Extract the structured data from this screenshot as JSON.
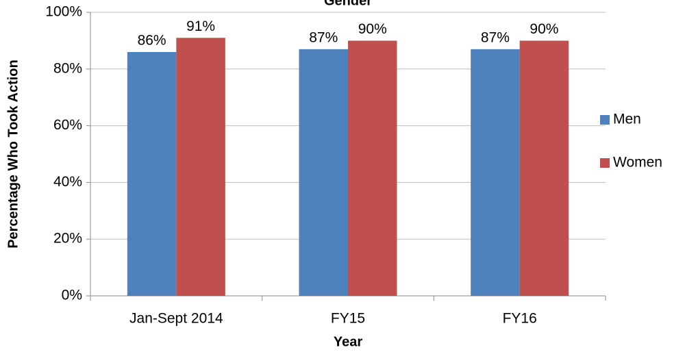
{
  "chart_data": {
    "type": "bar",
    "title": "Gender",
    "x_label": "Year",
    "y_label": "Percentage Who Took Action",
    "categories": [
      "Jan-Sept 2014",
      "FY15",
      "FY16"
    ],
    "series": [
      {
        "name": "Men",
        "color": "#4f81bd",
        "values": [
          86,
          87,
          87
        ],
        "value_labels": [
          "86%",
          "87%",
          "87%"
        ]
      },
      {
        "name": "Women",
        "color": "#c0504d",
        "values": [
          91,
          90,
          90
        ],
        "value_labels": [
          "91%",
          "90%",
          "90%"
        ]
      }
    ],
    "ylim": [
      0,
      100
    ],
    "yticks": [
      {
        "value": 0,
        "label": "0%"
      },
      {
        "value": 20,
        "label": "20%"
      },
      {
        "value": 40,
        "label": "40%"
      },
      {
        "value": 60,
        "label": "60%"
      },
      {
        "value": 80,
        "label": "80%"
      },
      {
        "value": 100,
        "label": "100%"
      }
    ],
    "grid": true,
    "legend": "right"
  }
}
